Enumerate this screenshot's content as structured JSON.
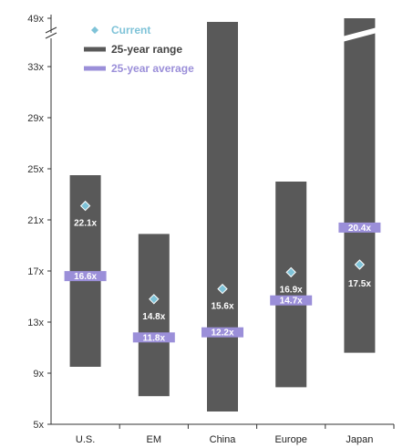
{
  "chart_data": {
    "type": "range-bar",
    "categories": [
      "U.S.",
      "EM",
      "China",
      "Europe",
      "Japan"
    ],
    "y_ticks": [
      "5x",
      "9x",
      "13x",
      "17x",
      "21x",
      "25x",
      "29x",
      "33x",
      "49x"
    ],
    "axis_break": "between 33x and 49x",
    "ylim": [
      5,
      49
    ],
    "series": [
      {
        "name": "Current",
        "values": [
          22.1,
          14.8,
          15.6,
          16.9,
          17.5
        ],
        "labels": [
          "22.1x",
          "14.8x",
          "15.6x",
          "16.9x",
          "17.5x"
        ],
        "color": "#7fc3d8"
      },
      {
        "name": "25-year range",
        "values": [
          [
            9.5,
            24.5
          ],
          [
            7.2,
            19.9
          ],
          [
            6.0,
            36.5
          ],
          [
            7.9,
            24.0
          ],
          [
            10.6,
            49.0
          ]
        ],
        "color": "#595959"
      },
      {
        "name": "25-year average",
        "values": [
          16.6,
          11.8,
          12.2,
          14.7,
          20.4
        ],
        "labels": [
          "16.6x",
          "11.8x",
          "12.2x",
          "14.7x",
          "20.4x"
        ],
        "color": "#9b8fd9"
      }
    ],
    "legend": {
      "placement": "top-left",
      "labels": [
        "Current",
        "25-year range",
        "25-year average"
      ],
      "colors": [
        "#7fc3d8",
        "#595959",
        "#9b8fd9"
      ]
    },
    "grid": false
  }
}
